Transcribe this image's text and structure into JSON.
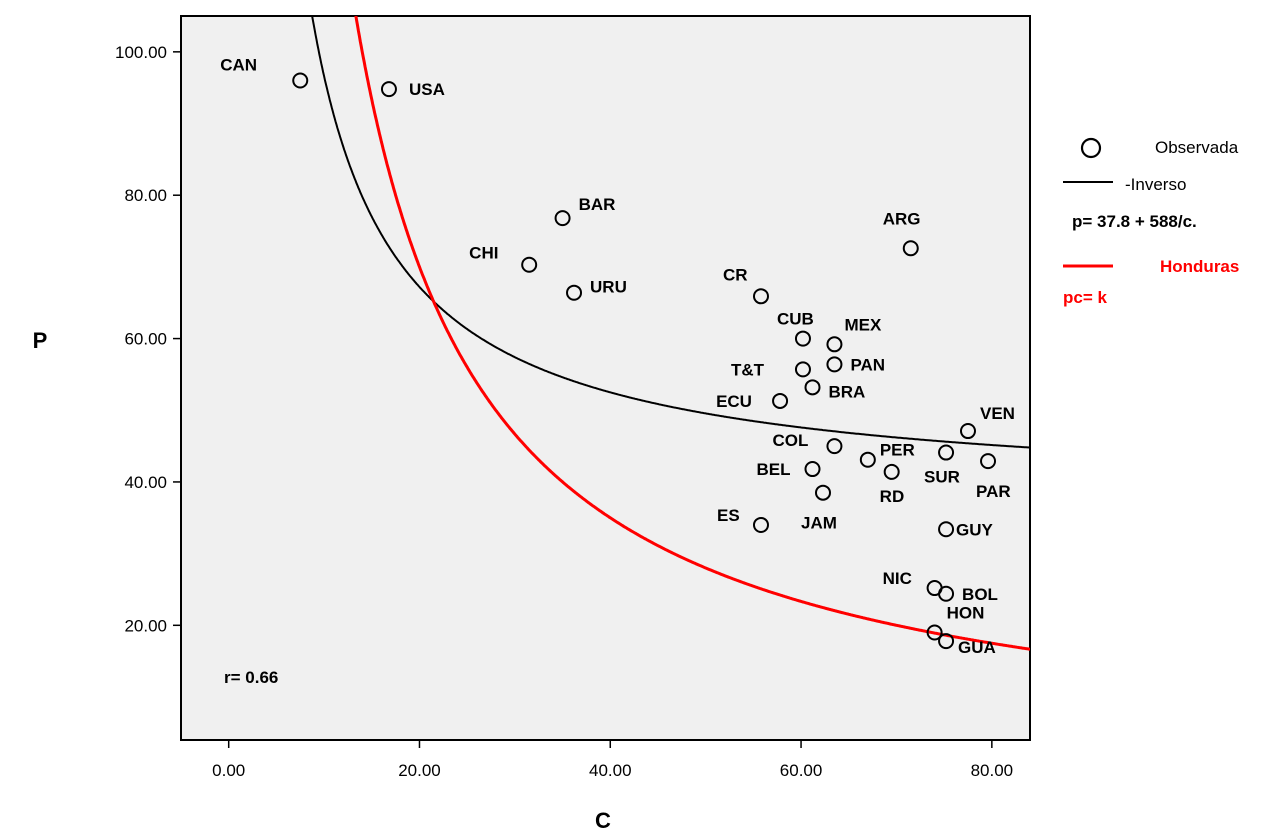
{
  "chart_data": {
    "type": "scatter",
    "xlabel": "C",
    "ylabel": "P",
    "xlim": [
      -5,
      84
    ],
    "ylim": [
      4,
      105
    ],
    "xticks": [
      0,
      20,
      40,
      60,
      80
    ],
    "yticks": [
      20,
      40,
      60,
      80,
      100
    ],
    "xtick_labels": [
      "0.00",
      "20.00",
      "40.00",
      "60.00",
      "80.00"
    ],
    "ytick_labels": [
      "20.00",
      "40.00",
      "60.00",
      "80.00",
      "100.00"
    ],
    "grid": false,
    "legend_position": "right",
    "annotation": "r= 0.66",
    "series": [
      {
        "name": "Observada",
        "kind": "points",
        "points": [
          {
            "label": "CAN",
            "x": 7.5,
            "y": 96.0
          },
          {
            "label": "USA",
            "x": 16.8,
            "y": 94.8
          },
          {
            "label": "BAR",
            "x": 35.0,
            "y": 76.8
          },
          {
            "label": "ARG",
            "x": 71.5,
            "y": 72.6
          },
          {
            "label": "CHI",
            "x": 31.5,
            "y": 70.3
          },
          {
            "label": "URU",
            "x": 36.2,
            "y": 66.4
          },
          {
            "label": "CR",
            "x": 55.8,
            "y": 65.9
          },
          {
            "label": "CUB",
            "x": 60.2,
            "y": 60.0
          },
          {
            "label": "MEX",
            "x": 63.5,
            "y": 59.2
          },
          {
            "label": "T&T",
            "x": 60.2,
            "y": 55.7
          },
          {
            "label": "PAN",
            "x": 63.5,
            "y": 56.4
          },
          {
            "label": "BRA",
            "x": 61.2,
            "y": 53.2
          },
          {
            "label": "ECU",
            "x": 57.8,
            "y": 51.3
          },
          {
            "label": "VEN",
            "x": 77.5,
            "y": 47.1
          },
          {
            "label": "COL",
            "x": 63.5,
            "y": 45.0
          },
          {
            "label": "SUR",
            "x": 75.2,
            "y": 44.1
          },
          {
            "label": "PER",
            "x": 67.0,
            "y": 43.1
          },
          {
            "label": "PAR",
            "x": 79.6,
            "y": 42.9
          },
          {
            "label": "BEL",
            "x": 61.2,
            "y": 41.8
          },
          {
            "label": "RD",
            "x": 69.5,
            "y": 41.4
          },
          {
            "label": "JAM",
            "x": 62.3,
            "y": 38.5
          },
          {
            "label": "ES",
            "x": 55.8,
            "y": 34.0
          },
          {
            "label": "GUY",
            "x": 75.2,
            "y": 33.4
          },
          {
            "label": "NIC",
            "x": 74.0,
            "y": 25.2
          },
          {
            "label": "BOL",
            "x": 75.2,
            "y": 24.4
          },
          {
            "label": "HON",
            "x": 74.0,
            "y": 19.0
          },
          {
            "label": "GUA",
            "x": 75.2,
            "y": 17.8
          }
        ]
      },
      {
        "name": "-Inverso",
        "kind": "curve",
        "equation": "p= 37.8  + 588/c.",
        "intercept": 37.8,
        "k": 588,
        "color": "#000000"
      },
      {
        "name": "Honduras",
        "kind": "curve",
        "equation": "pc= k",
        "intercept": 0,
        "k": 1400,
        "color": "#ff0000"
      }
    ]
  }
}
